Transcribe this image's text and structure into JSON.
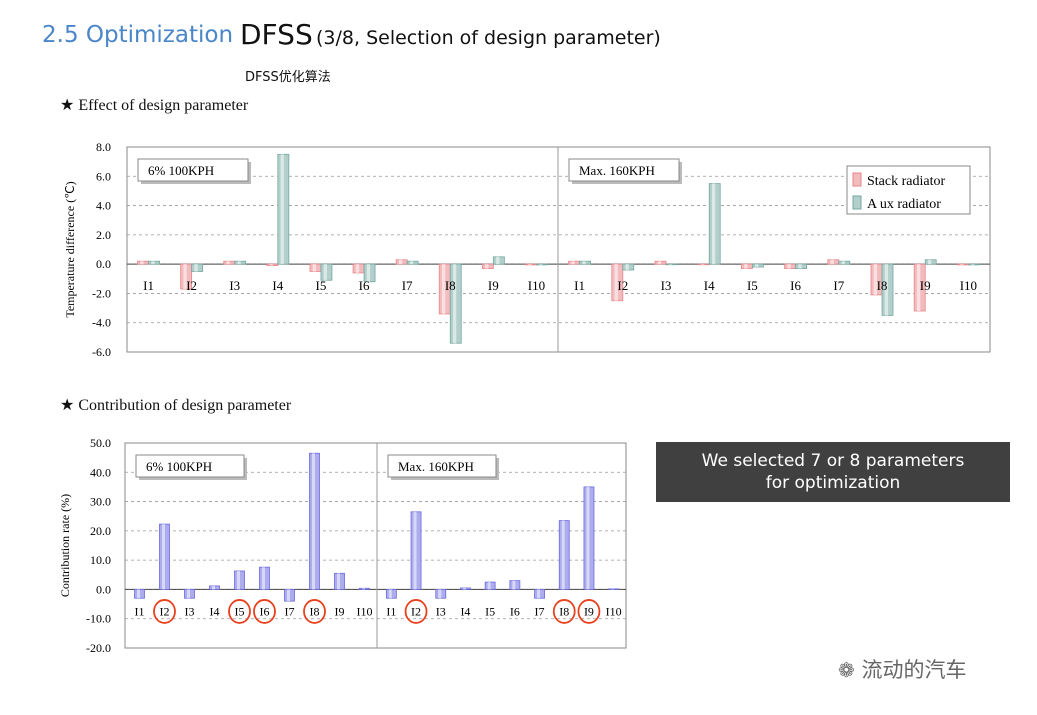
{
  "header": {
    "section": "2.5 Optimization",
    "title": "DFSS",
    "subtitle": "(3/8, Selection of design parameter)",
    "cn_label": "DFSS优化算法"
  },
  "sections": {
    "effect": "★ Effect of design parameter",
    "contribution": "★ Contribution of design parameter"
  },
  "callout": {
    "line1": "We selected 7 or 8 parameters",
    "line2": "for optimization"
  },
  "watermark": "流动的汽车",
  "chart_data": [
    {
      "type": "bar",
      "title": "",
      "ylabel": "Temperature difference (℃)",
      "ylim": [
        -6.0,
        8.0
      ],
      "yticks": [
        "8.0",
        "6.0",
        "4.0",
        "2.0",
        "0.0",
        "-2.0",
        "-4.0",
        "-6.0"
      ],
      "panels": [
        {
          "label": "6% 100KPH",
          "categories": [
            "I1",
            "I2",
            "I3",
            "I4",
            "I5",
            "I6",
            "I7",
            "I8",
            "I9",
            "I10"
          ],
          "series": [
            {
              "name": "Stack radiator",
              "color": "#e8858a",
              "values": [
                0.2,
                -1.7,
                0.2,
                -0.1,
                -0.5,
                -0.6,
                0.3,
                -3.4,
                -0.3,
                -0.05
              ]
            },
            {
              "name": "A ux radiator",
              "color": "#74a7a0",
              "values": [
                0.2,
                -0.5,
                0.2,
                7.5,
                -1.1,
                -1.2,
                0.2,
                -5.4,
                0.5,
                -0.05
              ]
            }
          ]
        },
        {
          "label": "Max. 160KPH",
          "categories": [
            "I1",
            "I2",
            "I3",
            "I4",
            "I5",
            "I6",
            "I7",
            "I8",
            "I9",
            "I10"
          ],
          "series": [
            {
              "name": "Stack radiator",
              "color": "#e8858a",
              "values": [
                0.2,
                -2.5,
                0.2,
                0.0,
                -0.3,
                -0.3,
                0.3,
                -2.1,
                -3.2,
                -0.05
              ]
            },
            {
              "name": "A ux radiator",
              "color": "#74a7a0",
              "values": [
                0.2,
                -0.4,
                0.0,
                5.5,
                -0.2,
                -0.3,
                0.2,
                -3.5,
                0.3,
                -0.05
              ]
            }
          ]
        }
      ],
      "legend": "top-right"
    },
    {
      "type": "bar",
      "title": "",
      "ylabel": "Contribution rate (%)",
      "ylim": [
        -20.0,
        50.0
      ],
      "yticks": [
        "50.0",
        "40.0",
        "30.0",
        "20.0",
        "10.0",
        "0.0",
        "-10.0",
        "-20.0"
      ],
      "panels": [
        {
          "label": "6% 100KPH",
          "categories": [
            "I1",
            "I2",
            "I3",
            "I4",
            "I5",
            "I6",
            "I7",
            "I8",
            "I9",
            "I10"
          ],
          "values": [
            -3.0,
            22.3,
            -3.0,
            1.2,
            6.3,
            7.6,
            -4.0,
            46.5,
            5.5,
            0.4
          ],
          "circled": [
            "I2",
            "I5",
            "I6",
            "I8"
          ]
        },
        {
          "label": "Max. 160KPH",
          "categories": [
            "I1",
            "I2",
            "I3",
            "I4",
            "I5",
            "I6",
            "I7",
            "I8",
            "I9",
            "I10"
          ],
          "values": [
            -3.0,
            26.5,
            -3.0,
            0.5,
            2.5,
            3.0,
            -3.0,
            23.5,
            35.0,
            0.2
          ],
          "circled": [
            "I2",
            "I8",
            "I9"
          ]
        }
      ],
      "color": "#6a6ae0"
    }
  ]
}
